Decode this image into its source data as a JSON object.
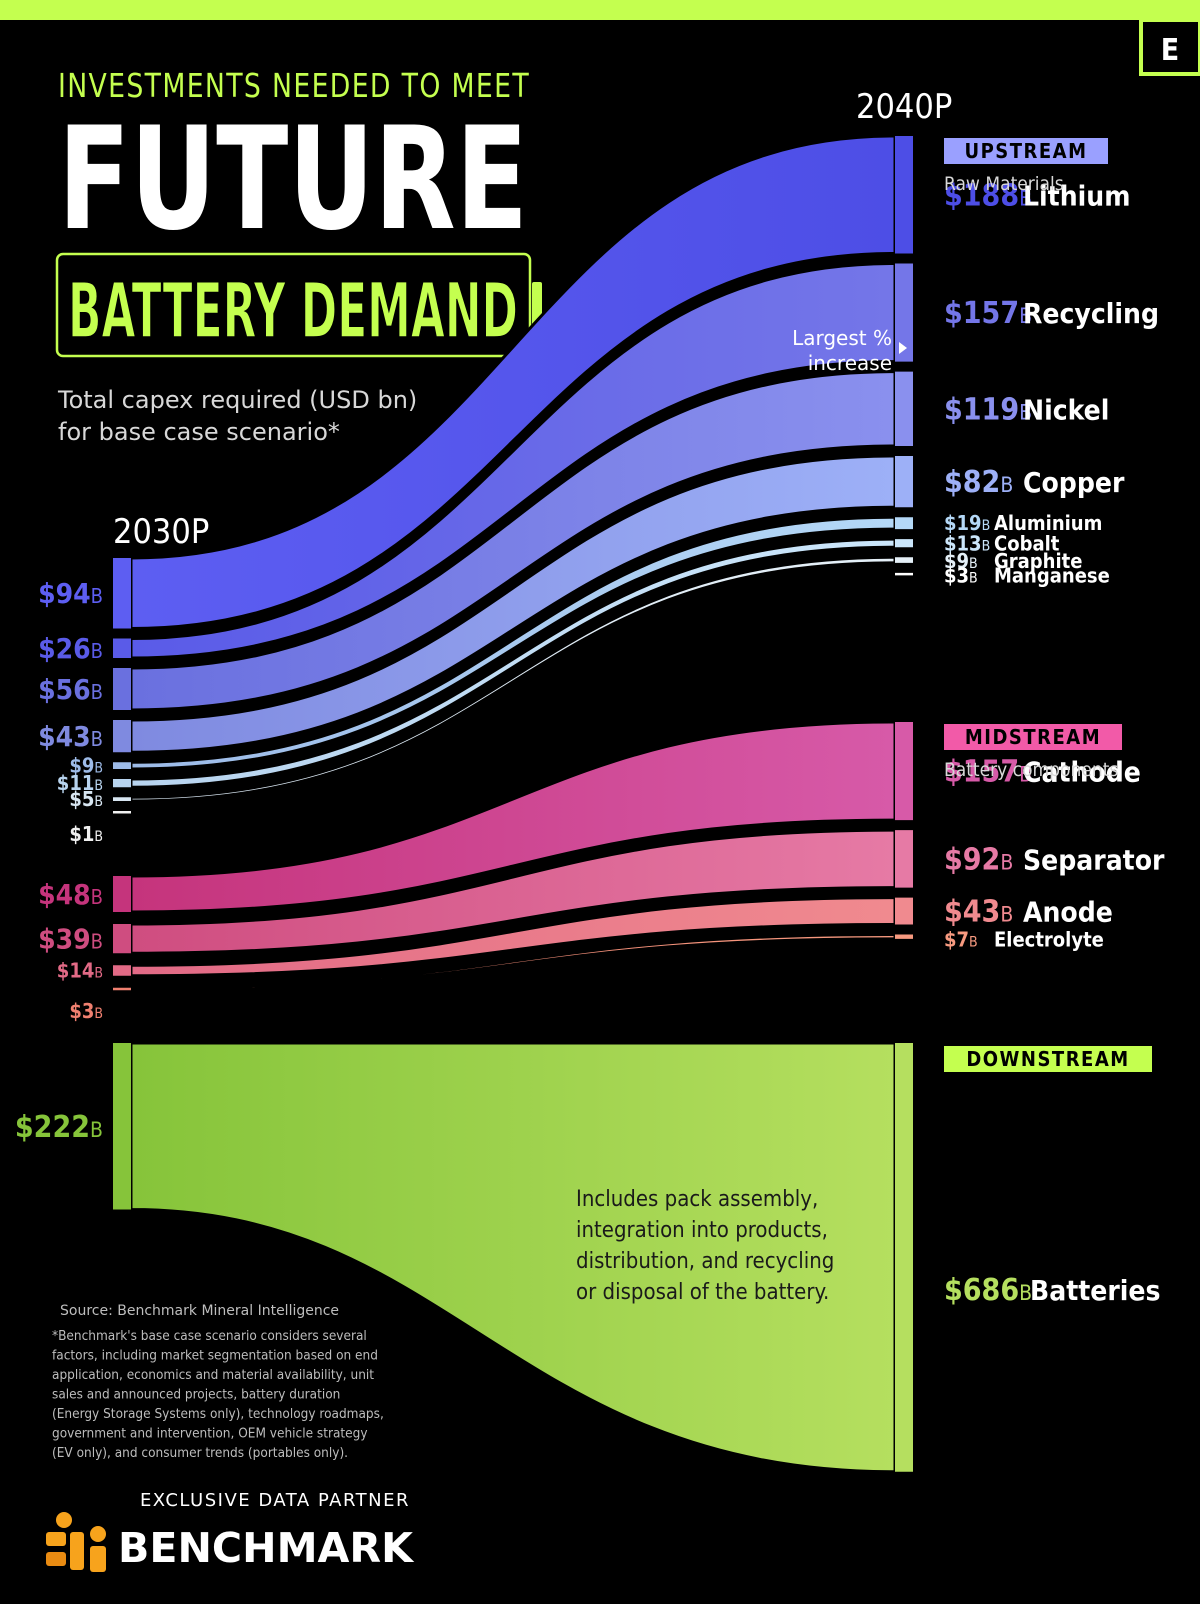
{
  "header": {
    "brand_mark": "E",
    "supertitle": "INVESTMENTS NEEDED TO MEET",
    "title": "FUTURE",
    "title_badge": "BATTERY DEMAND",
    "subtitle_line1": "Total capex required (USD bn)",
    "subtitle_line2": "for base case scenario*"
  },
  "colors": {
    "background": "#000000",
    "accent_green": "#c4ff4f",
    "upstream_label": "#9aa0ff",
    "midstream_label": "#f25aa8",
    "downstream_label": "#c4ff4f"
  },
  "chart_data": {
    "type": "sankey",
    "units": "USD bn",
    "unit_suffix": "B",
    "x_labels": {
      "left": "2030P",
      "right": "2040P"
    },
    "groups": [
      {
        "key": "upstream",
        "label": "UPSTREAM",
        "sublabel": "Raw Materials",
        "flows": [
          {
            "name": "Lithium",
            "v2030": 94,
            "v2040": 188,
            "color_left": "#5d5ef2",
            "color_right": "#4d4ee6"
          },
          {
            "name": "Recycling",
            "v2030": 26,
            "v2040": 157,
            "color_left": "#5a5be8",
            "color_right": "#7476e8"
          },
          {
            "name": "Nickel",
            "v2030": 56,
            "v2040": 119,
            "color_left": "#6a70df",
            "color_right": "#8a90ee"
          },
          {
            "name": "Copper",
            "v2030": 43,
            "v2040": 82,
            "color_left": "#7f8ae0",
            "color_right": "#9db0f7"
          },
          {
            "name": "Aluminium",
            "v2030": 9,
            "v2040": 19,
            "color_left": "#9dbbe8",
            "color_right": "#b4d8f7"
          },
          {
            "name": "Cobalt",
            "v2030": 11,
            "v2040": 13,
            "color_left": "#b8d4ef",
            "color_right": "#cbe6fb"
          },
          {
            "name": "Graphite",
            "v2030": 5,
            "v2040": 9,
            "color_left": "#d8e6f2",
            "color_right": "#e5f0f8"
          },
          {
            "name": "Manganese",
            "v2030": 1,
            "v2040": 3,
            "color_left": "#f0f0f0",
            "color_right": "#ffffff"
          }
        ]
      },
      {
        "key": "midstream",
        "label": "MIDSTREAM",
        "sublabel": "Battery components",
        "flows": [
          {
            "name": "Cathode",
            "v2030": 48,
            "v2040": 157,
            "color_left": "#c5347c",
            "color_right": "#d75aa8"
          },
          {
            "name": "Separator",
            "v2030": 39,
            "v2040": 92,
            "color_left": "#cf4d80",
            "color_right": "#e67aa5"
          },
          {
            "name": "Anode",
            "v2030": 14,
            "v2040": 43,
            "color_left": "#e26a86",
            "color_right": "#f08a8f"
          },
          {
            "name": "Electrolyte",
            "v2030": 3,
            "v2040": 7,
            "color_left": "#f08070",
            "color_right": "#f79a80"
          }
        ]
      },
      {
        "key": "downstream",
        "label": "DOWNSTREAM",
        "sublabel": "",
        "flows": [
          {
            "name": "Batteries",
            "v2030": 222,
            "v2040": 686,
            "color_left": "#86c43a",
            "color_right": "#b5df5f"
          }
        ]
      }
    ],
    "annotations": {
      "recycling_line1": "Largest %",
      "recycling_line2": "increase",
      "downstream_note": [
        "Includes pack assembly,",
        "integration into products,",
        "distribution, and recycling",
        "or disposal of the battery."
      ]
    }
  },
  "footer": {
    "source": "Source: Benchmark Mineral Intelligence",
    "footnote": [
      "*Benchmark's base case scenario considers several",
      "factors, including market segmentation based on end",
      "application, economics and material availability, unit",
      "sales and announced projects, battery duration",
      "(Energy Storage Systems only), technology roadmaps,",
      "government and intervention, OEM vehicle strategy",
      "(EV only), and consumer trends (portables only)."
    ],
    "partner_label": "EXCLUSIVE DATA PARTNER",
    "partner_name": "BENCHMARK"
  }
}
